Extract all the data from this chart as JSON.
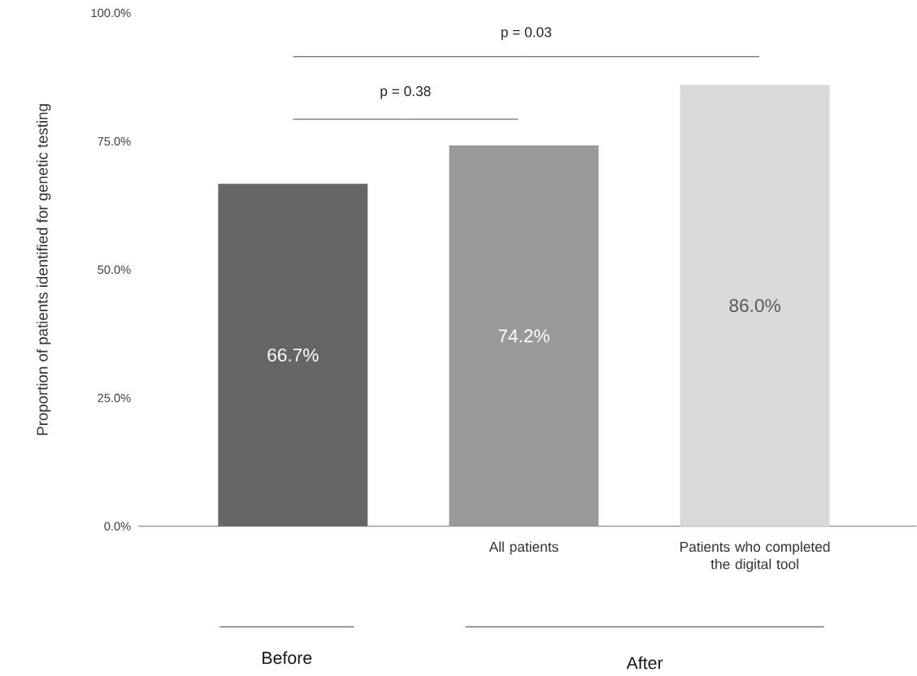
{
  "chart_data": {
    "type": "bar",
    "ylabel": "Proportion of patients identified for genetic testing",
    "categories": [
      null,
      "All patients",
      "Patients who completed the digital tool"
    ],
    "values": [
      66.7,
      74.2,
      86.0
    ],
    "colors": [
      "#666666",
      "#999999",
      "#d9d9d9"
    ],
    "value_labels": [
      "66.7%",
      "74.2%",
      "86.0%"
    ],
    "ylim": [
      0,
      100
    ],
    "yticks": [
      {
        "value": 0,
        "label": "0.0%"
      },
      {
        "value": 25,
        "label": "25.0%"
      },
      {
        "value": 50,
        "label": "50.0%"
      },
      {
        "value": 75,
        "label": "75.0%"
      },
      {
        "value": 100,
        "label": "100.0%"
      }
    ],
    "annotations": [
      "p = 0.38",
      "p = 0.03",
      "Before",
      "After"
    ]
  }
}
